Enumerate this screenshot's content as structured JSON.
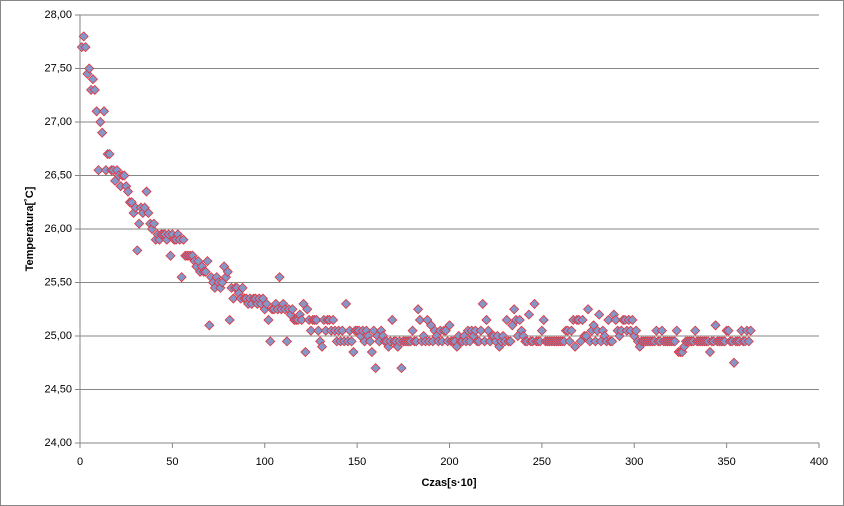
{
  "chart_data": {
    "type": "scatter",
    "xlabel": "Czas[s·10]",
    "ylabel": "Temperatura[˚C]",
    "xlim": [
      0,
      400
    ],
    "xticks": [
      0,
      50,
      100,
      150,
      200,
      250,
      300,
      350,
      400
    ],
    "ylim": [
      24,
      28
    ],
    "yticks": [
      {
        "value": 24,
        "label": "24,00"
      },
      {
        "value": 24.5,
        "label": "24,50"
      },
      {
        "value": 25,
        "label": "25,00"
      },
      {
        "value": 25.5,
        "label": "25,50"
      },
      {
        "value": 26,
        "label": "26,00"
      },
      {
        "value": 26.5,
        "label": "26,50"
      },
      {
        "value": 27,
        "label": "27,00"
      },
      {
        "value": 27.5,
        "label": "27,50"
      },
      {
        "value": 28,
        "label": "28,00"
      }
    ],
    "grid": true,
    "series": [
      {
        "color": "#8497c8",
        "edge_color": "#e0303a",
        "x": [
          1,
          2,
          3,
          4,
          5,
          6,
          7,
          8,
          9,
          10,
          11,
          12,
          13,
          14,
          15,
          16,
          17,
          18,
          19,
          20,
          21,
          22,
          23,
          24,
          25,
          26,
          27,
          28,
          29,
          30,
          31,
          32,
          33,
          34,
          35,
          36,
          37,
          38,
          39,
          40,
          41,
          42,
          43,
          44,
          45,
          46,
          47,
          48,
          49,
          50,
          51,
          52,
          53,
          54,
          55,
          56,
          57,
          58,
          59,
          60,
          61,
          62,
          63,
          64,
          65,
          66,
          67,
          68,
          69,
          70,
          71,
          72,
          73,
          74,
          75,
          76,
          77,
          78,
          79,
          80,
          81,
          82,
          83,
          84,
          85,
          86,
          87,
          88,
          89,
          90,
          91,
          92,
          93,
          94,
          95,
          96,
          97,
          98,
          99,
          100,
          101,
          102,
          103,
          104,
          105,
          106,
          107,
          108,
          109,
          110,
          111,
          112,
          113,
          114,
          115,
          116,
          117,
          118,
          119,
          120,
          121,
          122,
          123,
          124,
          125,
          126,
          127,
          128,
          129,
          130,
          131,
          132,
          133,
          134,
          135,
          136,
          137,
          138,
          139,
          140,
          141,
          142,
          143,
          144,
          145,
          146,
          147,
          148,
          149,
          150,
          151,
          152,
          153,
          154,
          155,
          156,
          157,
          158,
          159,
          160,
          161,
          162,
          163,
          164,
          165,
          166,
          167,
          168,
          169,
          170,
          171,
          172,
          173,
          174,
          175,
          176,
          177,
          178,
          179,
          180,
          181,
          182,
          183,
          184,
          185,
          186,
          187,
          188,
          189,
          190,
          191,
          192,
          193,
          194,
          195,
          196,
          197,
          198,
          199,
          200,
          201,
          202,
          203,
          204,
          205,
          206,
          207,
          208,
          209,
          210,
          211,
          212,
          213,
          214,
          215,
          216,
          217,
          218,
          219,
          220,
          221,
          222,
          223,
          224,
          225,
          226,
          227,
          228,
          229,
          230,
          231,
          232,
          233,
          234,
          235,
          236,
          237,
          238,
          239,
          240,
          241,
          242,
          243,
          244,
          245,
          246,
          247,
          248,
          249,
          250,
          251,
          252,
          253,
          254,
          255,
          256,
          257,
          258,
          259,
          260,
          261,
          262,
          263,
          264,
          265,
          266,
          267,
          268,
          269,
          270,
          271,
          272,
          273,
          274,
          275,
          276,
          277,
          278,
          279,
          280,
          281,
          282,
          283,
          284,
          285,
          286,
          287,
          288,
          289,
          290,
          291,
          292,
          293,
          294,
          295,
          296,
          297,
          298,
          299,
          300,
          301,
          302,
          303,
          304,
          305,
          306,
          307,
          308,
          309,
          310,
          311,
          312,
          313,
          314,
          315,
          316,
          317,
          318,
          319,
          320,
          321,
          322,
          323,
          324,
          325,
          326,
          327,
          328,
          329,
          330,
          331,
          332,
          333,
          334,
          335,
          336,
          337,
          338,
          339,
          340,
          341,
          342,
          343,
          344,
          345,
          346,
          347,
          348,
          349,
          350,
          351,
          352,
          353,
          354,
          355,
          356,
          357,
          358,
          359,
          360,
          361,
          362,
          363
        ],
        "values": [
          27.7,
          27.8,
          27.7,
          27.45,
          27.5,
          27.3,
          27.4,
          27.3,
          27.1,
          26.55,
          27.0,
          26.9,
          27.1,
          26.55,
          26.7,
          26.7,
          26.55,
          26.55,
          26.45,
          26.55,
          26.5,
          26.4,
          26.5,
          26.5,
          26.4,
          26.35,
          26.25,
          26.25,
          26.15,
          26.2,
          25.8,
          26.05,
          26.2,
          26.15,
          26.2,
          26.35,
          26.15,
          26.05,
          26.0,
          26.05,
          25.9,
          25.95,
          25.9,
          25.95,
          25.95,
          25.95,
          25.9,
          25.95,
          25.75,
          25.95,
          25.9,
          25.9,
          25.95,
          25.9,
          25.55,
          25.9,
          25.75,
          25.75,
          25.75,
          25.75,
          25.75,
          25.7,
          25.65,
          25.7,
          25.6,
          25.65,
          25.6,
          25.6,
          25.7,
          25.1,
          25.55,
          25.5,
          25.45,
          25.55,
          25.5,
          25.45,
          25.5,
          25.65,
          25.55,
          25.6,
          25.15,
          25.45,
          25.35,
          25.45,
          25.45,
          25.4,
          25.35,
          25.45,
          25.35,
          25.35,
          25.3,
          25.35,
          25.3,
          25.35,
          25.35,
          25.3,
          25.35,
          25.3,
          25.35,
          25.25,
          25.3,
          25.15,
          24.95,
          25.25,
          25.25,
          25.3,
          25.25,
          25.55,
          25.25,
          25.3,
          25.25,
          24.95,
          25.25,
          25.2,
          25.25,
          25.15,
          25.15,
          25.15,
          25.2,
          25.15,
          25.3,
          24.85,
          25.25,
          25.15,
          25.05,
          25.15,
          25.15,
          25.15,
          25.05,
          24.95,
          24.9,
          25.15,
          25.05,
          25.15,
          25.15,
          25.05,
          25.15,
          25.05,
          24.95,
          25.05,
          24.95,
          25.05,
          24.95,
          25.3,
          24.95,
          25.05,
          24.95,
          24.85,
          25.05,
          25.05,
          25.05,
          25.0,
          25.05,
          24.95,
          25.05,
          25.0,
          24.95,
          24.85,
          25.05,
          24.7,
          25.0,
          24.95,
          25.05,
          25.0,
          24.95,
          24.95,
          24.9,
          24.95,
          25.15,
          24.95,
          24.95,
          24.9,
          24.95,
          24.7,
          24.95,
          24.95,
          24.95,
          24.95,
          24.95,
          25.05,
          24.95,
          24.95,
          25.25,
          25.15,
          24.95,
          25.0,
          24.95,
          25.15,
          24.95,
          25.1,
          24.95,
          25.05,
          25.0,
          24.95,
          25.05,
          24.95,
          25.05,
          25.05,
          24.95,
          25.1,
          24.95,
          24.95,
          24.95,
          24.9,
          25.0,
          24.95,
          24.95,
          25.0,
          24.95,
          25.05,
          24.95,
          25.05,
          25.0,
          25.05,
          24.95,
          24.95,
          25.05,
          25.3,
          24.95,
          25.15,
          25.05,
          24.95,
          25.0,
          25.0,
          24.95,
          25.0,
          24.9,
          24.95,
          25.0,
          24.95,
          25.15,
          24.95,
          24.95,
          25.1,
          25.25,
          25.15,
          25.0,
          25.15,
          25.05,
          25.0,
          24.95,
          24.95,
          25.2,
          24.95,
          24.95,
          25.3,
          24.95,
          24.95,
          24.95,
          25.05,
          25.15,
          24.95,
          24.95,
          24.95,
          24.95,
          24.95,
          24.95,
          24.95,
          24.95,
          24.95,
          24.95,
          24.95,
          25.05,
          25.05,
          24.95,
          25.05,
          25.15,
          24.9,
          25.15,
          25.15,
          24.95,
          25.15,
          25.0,
          25.0,
          25.25,
          24.95,
          25.05,
          25.1,
          24.95,
          25.05,
          25.2,
          24.95,
          25.05,
          25.0,
          24.95,
          25.15,
          24.95,
          24.95,
          25.2,
          25.15,
          25.05,
          25.0,
          25.05,
          25.15,
          25.15,
          25.05,
          25.15,
          25.05,
          25.15,
          25.0,
          25.05,
          24.95,
          24.9,
          24.95,
          24.95,
          24.95,
          24.95,
          24.95,
          24.95,
          24.95,
          24.95,
          25.05,
          24.95,
          24.95,
          25.05,
          24.95,
          24.95,
          24.95,
          24.95,
          24.95,
          24.95,
          24.95,
          25.05,
          24.85,
          24.85,
          24.85,
          24.9,
          24.95,
          24.95,
          24.95,
          24.95,
          24.95,
          25.05,
          24.95,
          24.95,
          24.95,
          24.95,
          24.95,
          24.95,
          24.95,
          24.85,
          24.95,
          24.95,
          25.1,
          24.95,
          24.95,
          24.95,
          24.95,
          24.95,
          25.05,
          25.05,
          24.95,
          24.95,
          24.75,
          24.95,
          24.95,
          24.95,
          25.05,
          24.95,
          24.95,
          25.05,
          24.95,
          25.05
        ]
      }
    ]
  }
}
